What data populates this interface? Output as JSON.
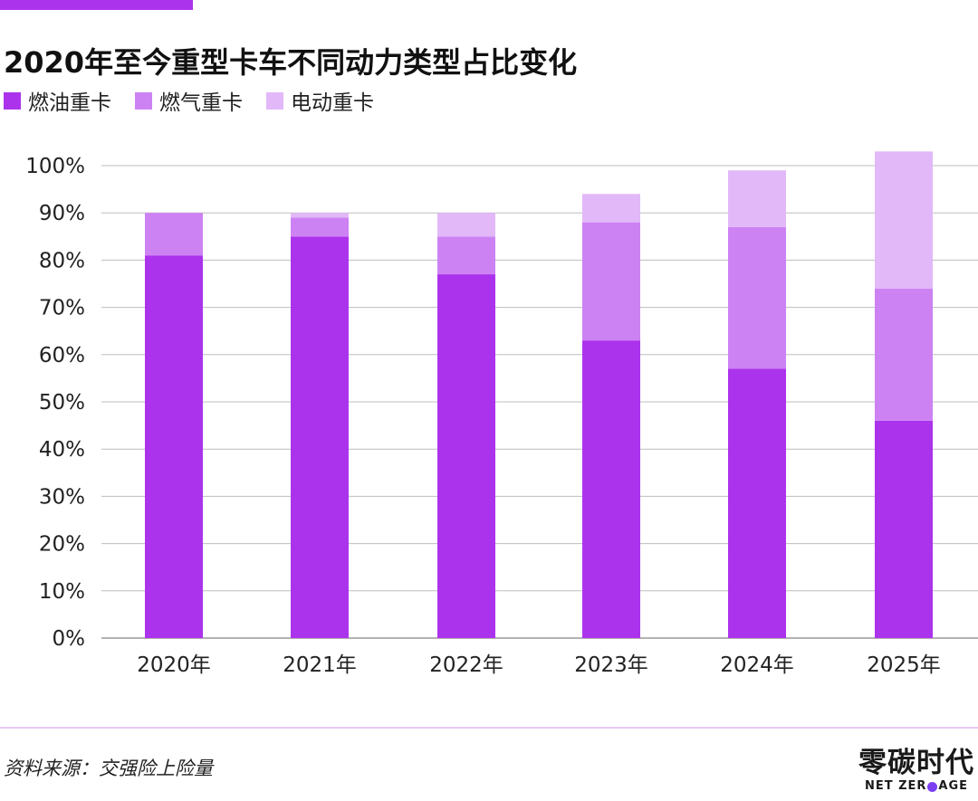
{
  "title": "2020年至今重型卡车不同动力类型占比变化",
  "colors": {
    "accent": "#ac33ec",
    "fuel": "#ac33ec",
    "gas": "#cd82f3",
    "electric": "#e2b8f8"
  },
  "legend": [
    {
      "label": "燃油重卡",
      "color": "#ac33ec"
    },
    {
      "label": "燃气重卡",
      "color": "#cd82f3"
    },
    {
      "label": "电动重卡",
      "color": "#e2b8f8"
    }
  ],
  "chart_data": {
    "type": "bar",
    "stacked": true,
    "categories": [
      "2020年",
      "2021年",
      "2022年",
      "2023年",
      "2024年",
      "2025年"
    ],
    "series": [
      {
        "name": "燃油重卡",
        "values": [
          81,
          85,
          77,
          63,
          57,
          46
        ]
      },
      {
        "name": "燃气重卡",
        "values": [
          9,
          4,
          8,
          25,
          30,
          28
        ]
      },
      {
        "name": "电动重卡",
        "values": [
          0,
          1,
          5,
          6,
          12,
          29
        ]
      }
    ],
    "ylim": [
      0,
      100
    ],
    "yticks": [
      "0%",
      "10%",
      "20%",
      "30%",
      "40%",
      "50%",
      "60%",
      "70%",
      "80%",
      "90%",
      "100%"
    ],
    "grid": true,
    "legend_position": "top-left"
  },
  "footer": {
    "source": "资料来源：交强险上险量",
    "logo_cn": "零碳时代",
    "logo_en_left": "NET ZER",
    "logo_en_right": "AGE"
  }
}
